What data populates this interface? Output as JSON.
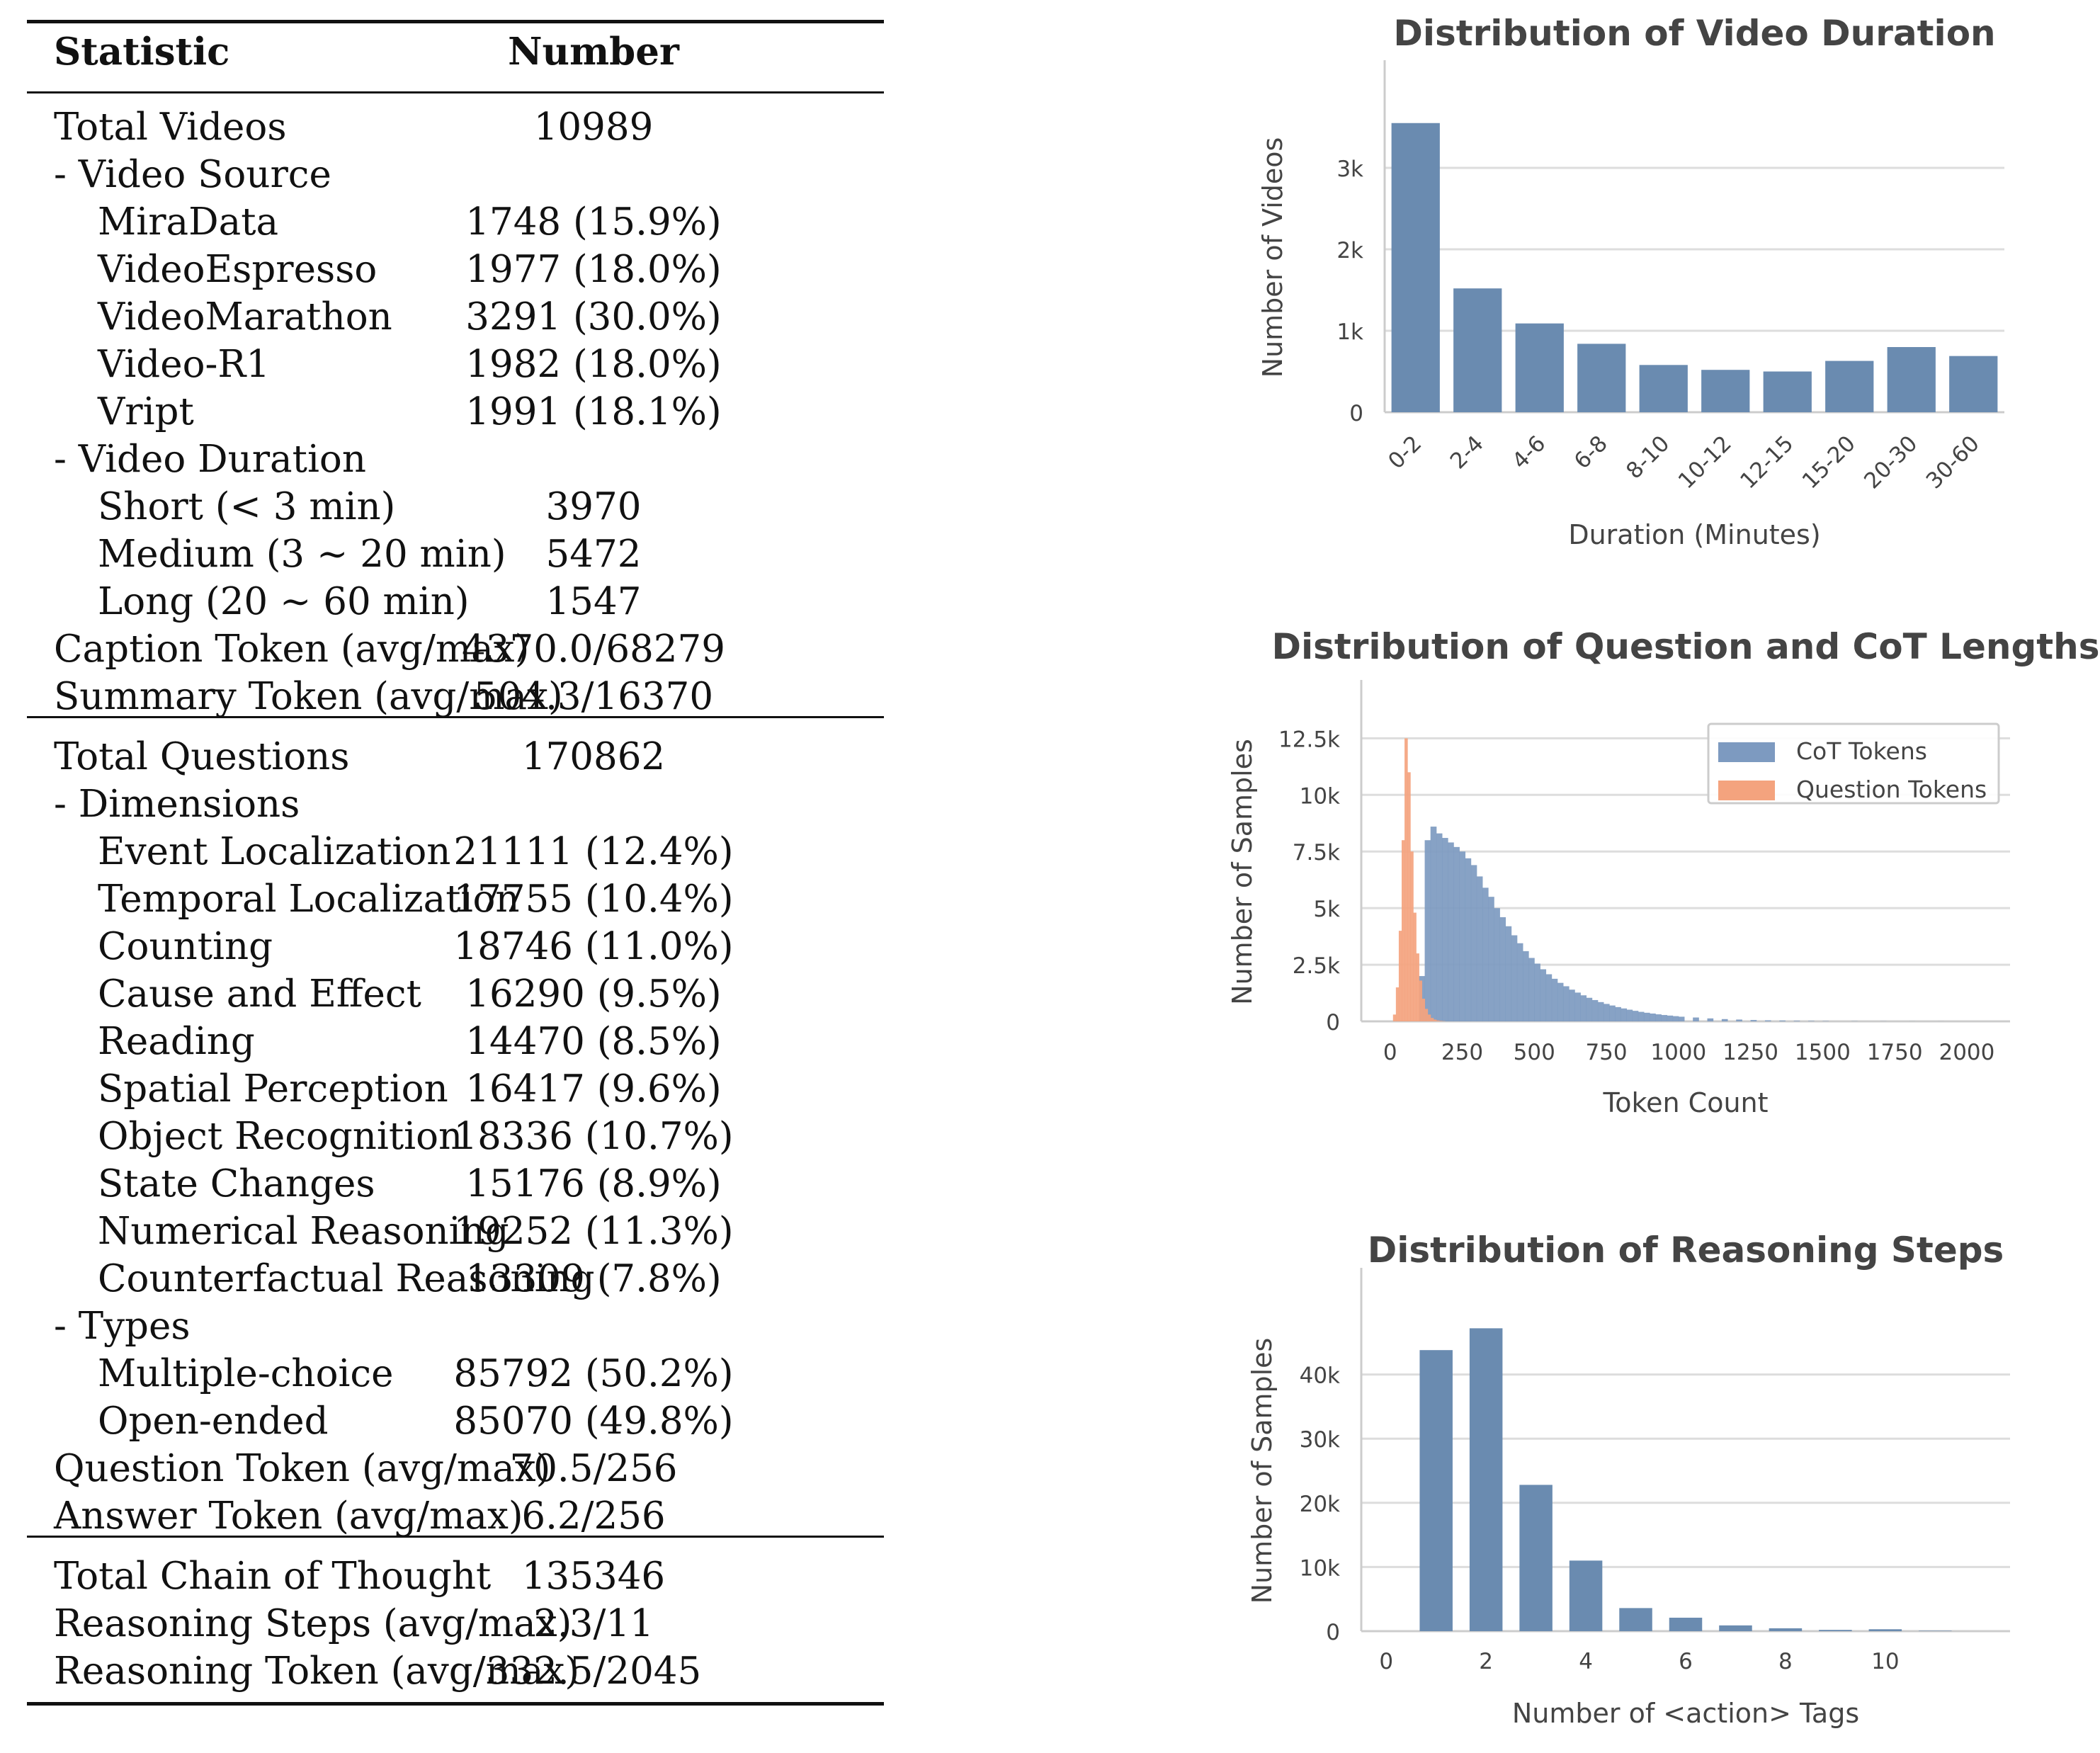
{
  "table": {
    "header": {
      "statistic": "Statistic",
      "number": "Number"
    },
    "sections": [
      {
        "rows": [
          {
            "label": "Total Videos",
            "value": "10989",
            "indent": 0
          },
          {
            "label": "- Video Source",
            "value": "",
            "indent": 0
          },
          {
            "label": "MiraData",
            "value": "1748 (15.9%)",
            "indent": 1
          },
          {
            "label": "VideoEspresso",
            "value": "1977 (18.0%)",
            "indent": 1
          },
          {
            "label": "VideoMarathon",
            "value": "3291 (30.0%)",
            "indent": 1
          },
          {
            "label": "Video-R1",
            "value": "1982 (18.0%)",
            "indent": 1
          },
          {
            "label": "Vript",
            "value": "1991 (18.1%)",
            "indent": 1
          },
          {
            "label": "- Video Duration",
            "value": "",
            "indent": 0
          },
          {
            "label": "Short (< 3 min)",
            "value": "3970",
            "indent": 1
          },
          {
            "label": "Medium (3 ∼ 20 min)",
            "value": "5472",
            "indent": 1
          },
          {
            "label": "Long (20 ∼ 60 min)",
            "value": "1547",
            "indent": 1
          },
          {
            "label": "Caption Token (avg/max)",
            "value": "4370.0/68279",
            "indent": 0
          },
          {
            "label": "Summary Token (avg/max)",
            "value": "504.3/16370",
            "indent": 0
          }
        ]
      },
      {
        "rows": [
          {
            "label": "Total Questions",
            "value": "170862",
            "indent": 0
          },
          {
            "label": "- Dimensions",
            "value": "",
            "indent": 0
          },
          {
            "label": "Event Localization",
            "value": "21111 (12.4%)",
            "indent": 1
          },
          {
            "label": "Temporal Localization",
            "value": "17755 (10.4%)",
            "indent": 1
          },
          {
            "label": "Counting",
            "value": "18746 (11.0%)",
            "indent": 1
          },
          {
            "label": "Cause and Effect",
            "value": "16290 (9.5%)",
            "indent": 1
          },
          {
            "label": "Reading",
            "value": "14470 (8.5%)",
            "indent": 1
          },
          {
            "label": "Spatial Perception",
            "value": "16417 (9.6%)",
            "indent": 1
          },
          {
            "label": "Object Recognition",
            "value": "18336 (10.7%)",
            "indent": 1
          },
          {
            "label": "State Changes",
            "value": "15176 (8.9%)",
            "indent": 1
          },
          {
            "label": "Numerical Reasoning",
            "value": "19252 (11.3%)",
            "indent": 1
          },
          {
            "label": "Counterfactual Reasoning",
            "value": "13309 (7.8%)",
            "indent": 1
          },
          {
            "label": "- Types",
            "value": "",
            "indent": 0
          },
          {
            "label": "Multiple-choice",
            "value": "85792 (50.2%)",
            "indent": 1
          },
          {
            "label": "Open-ended",
            "value": "85070 (49.8%)",
            "indent": 1
          },
          {
            "label": "Question Token (avg/max)",
            "value": "70.5/256",
            "indent": 0
          },
          {
            "label": "Answer Token (avg/max)",
            "value": "6.2/256",
            "indent": 0
          }
        ]
      },
      {
        "rows": [
          {
            "label": "Total Chain of Thought",
            "value": "135346",
            "indent": 0
          },
          {
            "label": "Reasoning Steps (avg/max)",
            "value": "2.3/11",
            "indent": 0
          },
          {
            "label": "Reasoning Token (avg/max)",
            "value": "332.5/2045",
            "indent": 0
          }
        ]
      }
    ]
  },
  "colors": {
    "bar": "#6a8bb0",
    "cot": "#7d9ac0",
    "question": "#f4a37e",
    "grid": "#dddddd",
    "axis": "#cccccc",
    "text": "#444444"
  },
  "chart_data": [
    {
      "type": "bar",
      "title": "Distribution of Video Duration",
      "xlabel": "Duration (Minutes)",
      "ylabel": "Number of Videos",
      "categories": [
        "0-2",
        "2-4",
        "4-6",
        "6-8",
        "8-10",
        "10-12",
        "12-15",
        "15-20",
        "20-30",
        "30-60"
      ],
      "values": [
        3550,
        1520,
        1090,
        840,
        580,
        520,
        500,
        630,
        800,
        690
      ],
      "ylim": [
        0,
        3800
      ],
      "yticks": [
        0,
        1000,
        2000,
        3000
      ],
      "yticklabels": [
        "0",
        "1k",
        "2k",
        "3k"
      ],
      "grid": "horizontal"
    },
    {
      "type": "histogram",
      "title": "Distribution of Question and CoT Lengths",
      "xlabel": "Token Count",
      "ylabel": "Number of Samples",
      "xlim": [
        -100,
        2150
      ],
      "ylim": [
        0,
        13200
      ],
      "xticks": [
        0,
        250,
        500,
        750,
        1000,
        1250,
        1500,
        1750,
        2000
      ],
      "xticklabels": [
        "0",
        "250",
        "500",
        "750",
        "1000",
        "1250",
        "1500",
        "1750",
        "2000"
      ],
      "yticks": [
        0,
        2500,
        5000,
        7500,
        10000,
        12500
      ],
      "yticklabels": [
        "0",
        "2.5k",
        "5k",
        "7.5k",
        "10k",
        "12.5k"
      ],
      "legend_position": "top-right",
      "grid": "horizontal",
      "series": [
        {
          "name": "CoT Tokens",
          "color": "#7d9ac0",
          "bins": [
            [
              100,
              2000
            ],
            [
              120,
              8000
            ],
            [
              140,
              8600
            ],
            [
              160,
              8300
            ],
            [
              180,
              8100
            ],
            [
              200,
              7900
            ],
            [
              220,
              7700
            ],
            [
              240,
              7500
            ],
            [
              260,
              7200
            ],
            [
              280,
              6900
            ],
            [
              300,
              6400
            ],
            [
              320,
              5900
            ],
            [
              340,
              5500
            ],
            [
              360,
              5000
            ],
            [
              380,
              4600
            ],
            [
              400,
              4200
            ],
            [
              420,
              3800
            ],
            [
              440,
              3450
            ],
            [
              460,
              3100
            ],
            [
              480,
              2800
            ],
            [
              500,
              2550
            ],
            [
              520,
              2300
            ],
            [
              540,
              2080
            ],
            [
              560,
              1880
            ],
            [
              580,
              1700
            ],
            [
              600,
              1550
            ],
            [
              620,
              1400
            ],
            [
              640,
              1270
            ],
            [
              660,
              1150
            ],
            [
              680,
              1040
            ],
            [
              700,
              940
            ],
            [
              720,
              850
            ],
            [
              740,
              770
            ],
            [
              760,
              700
            ],
            [
              780,
              630
            ],
            [
              800,
              570
            ],
            [
              820,
              515
            ],
            [
              840,
              465
            ],
            [
              860,
              420
            ],
            [
              880,
              380
            ],
            [
              900,
              345
            ],
            [
              920,
              310
            ],
            [
              940,
              280
            ],
            [
              960,
              255
            ],
            [
              980,
              230
            ],
            [
              1000,
              205
            ],
            [
              1050,
              170
            ],
            [
              1100,
              130
            ],
            [
              1150,
              100
            ],
            [
              1200,
              80
            ],
            [
              1250,
              60
            ],
            [
              1300,
              45
            ],
            [
              1350,
              35
            ],
            [
              1400,
              25
            ],
            [
              1450,
              18
            ],
            [
              1500,
              12
            ],
            [
              1600,
              8
            ],
            [
              1700,
              5
            ],
            [
              1800,
              3
            ],
            [
              1900,
              2
            ]
          ],
          "bin_width": 20
        },
        {
          "name": "Question Tokens",
          "color": "#f4a37e",
          "bins": [
            [
              10,
              300
            ],
            [
              20,
              1500
            ],
            [
              30,
              4000
            ],
            [
              40,
              8000
            ],
            [
              50,
              12500
            ],
            [
              60,
              11000
            ],
            [
              70,
              7500
            ],
            [
              80,
              4800
            ],
            [
              90,
              3000
            ],
            [
              100,
              1800
            ],
            [
              110,
              1000
            ],
            [
              120,
              550
            ],
            [
              130,
              300
            ],
            [
              140,
              150
            ],
            [
              150,
              80
            ],
            [
              160,
              40
            ],
            [
              170,
              20
            ],
            [
              180,
              10
            ]
          ],
          "bin_width": 10
        }
      ]
    },
    {
      "type": "bar",
      "title": "Distribution of Reasoning Steps",
      "xlabel": "Number of <action> Tags",
      "ylabel": "Number of Samples",
      "x": [
        0,
        1,
        2,
        3,
        4,
        5,
        6,
        7,
        8,
        9,
        10,
        11
      ],
      "values": [
        0,
        43800,
        47200,
        22800,
        11000,
        3600,
        2100,
        900,
        450,
        200,
        300,
        60
      ],
      "xlim": [
        -0.5,
        12.5
      ],
      "ylim": [
        0,
        50000
      ],
      "xticks": [
        0,
        2,
        4,
        6,
        8,
        10
      ],
      "xticklabels": [
        "0",
        "2",
        "4",
        "6",
        "8",
        "10"
      ],
      "yticks": [
        0,
        10000,
        20000,
        30000,
        40000
      ],
      "yticklabels": [
        "0",
        "10k",
        "20k",
        "30k",
        "40k"
      ],
      "grid": "horizontal"
    }
  ]
}
